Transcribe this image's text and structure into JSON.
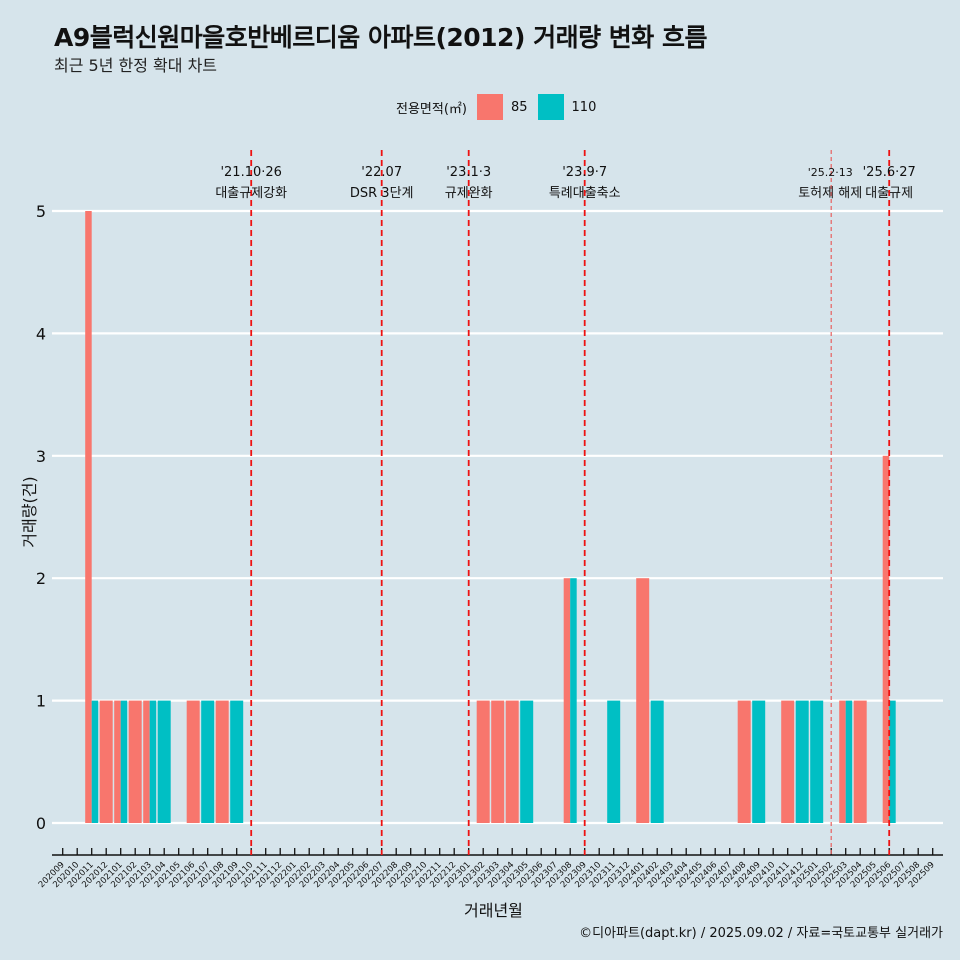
{
  "title": "A9블럭신원마을호반베르디움 아파트(2012) 거래량 변화 흐름",
  "subtitle": "최근 5년 한정 확대 차트",
  "caption": "©디아파트(dapt.kr) / 2025.09.02 / 자료=국토교통부 실거래가",
  "legend": {
    "title": "전용면적(㎡)",
    "items": [
      {
        "label": "85",
        "color": "#F8766D"
      },
      {
        "label": "110",
        "color": "#00BFC4"
      }
    ]
  },
  "chart_data": {
    "type": "bar",
    "title": "A9블럭신원마을호반베르디움 아파트(2012) 거래량 변화 흐름",
    "xlabel": "거래년월",
    "ylabel": "거래량(건)",
    "ylim": [
      0,
      5
    ],
    "yticks": [
      0,
      1,
      2,
      3,
      4,
      5
    ],
    "grid": true,
    "legend_position": "top",
    "categories": [
      "202009",
      "202010",
      "202011",
      "202012",
      "202101",
      "202102",
      "202103",
      "202104",
      "202105",
      "202106",
      "202107",
      "202108",
      "202109",
      "202110",
      "202111",
      "202112",
      "202201",
      "202202",
      "202203",
      "202204",
      "202205",
      "202206",
      "202207",
      "202208",
      "202209",
      "202210",
      "202211",
      "202212",
      "202301",
      "202302",
      "202303",
      "202304",
      "202305",
      "202306",
      "202307",
      "202308",
      "202309",
      "202310",
      "202311",
      "202312",
      "202401",
      "202402",
      "202403",
      "202404",
      "202405",
      "202406",
      "202407",
      "202408",
      "202409",
      "202410",
      "202411",
      "202412",
      "202501",
      "202502",
      "202503",
      "202504",
      "202505",
      "202506",
      "202507",
      "202508",
      "202509"
    ],
    "series": [
      {
        "name": "85",
        "values": {
          "202011": 5,
          "202012": 1,
          "202101": 1,
          "202102": 1,
          "202103": 1,
          "202106": 1,
          "202108": 1,
          "202302": 1,
          "202303": 1,
          "202304": 1,
          "202308": 2,
          "202401": 2,
          "202408": 1,
          "202411": 1,
          "202503": 1,
          "202504": 1,
          "202506": 3
        }
      },
      {
        "name": "110",
        "values": {
          "202011": 1,
          "202101": 1,
          "202103": 1,
          "202104": 1,
          "202107": 1,
          "202109": 1,
          "202305": 1,
          "202308": 2,
          "202311": 1,
          "202402": 1,
          "202409": 1,
          "202412": 1,
          "202501": 1,
          "202503": 1,
          "202506": 1
        }
      }
    ],
    "annotations": [
      {
        "month": "202110",
        "date": "'21.10·26",
        "label": "대출규제강화",
        "style": "dashed"
      },
      {
        "month": "202207",
        "date": "'22.07",
        "label": "DSR 3단계",
        "style": "dashed"
      },
      {
        "month": "202301",
        "date": "'23.1·3",
        "label": "규제완화",
        "style": "dashed"
      },
      {
        "month": "202309",
        "date": "'23.9·7",
        "label": "특례대출축소",
        "style": "dashed"
      },
      {
        "month": "202502",
        "date": "'25.2·13",
        "label": "토허제 해제",
        "style": "dotted"
      },
      {
        "month": "202506",
        "date": "'25.6·27",
        "label": "대출규제",
        "style": "dashed"
      }
    ]
  }
}
